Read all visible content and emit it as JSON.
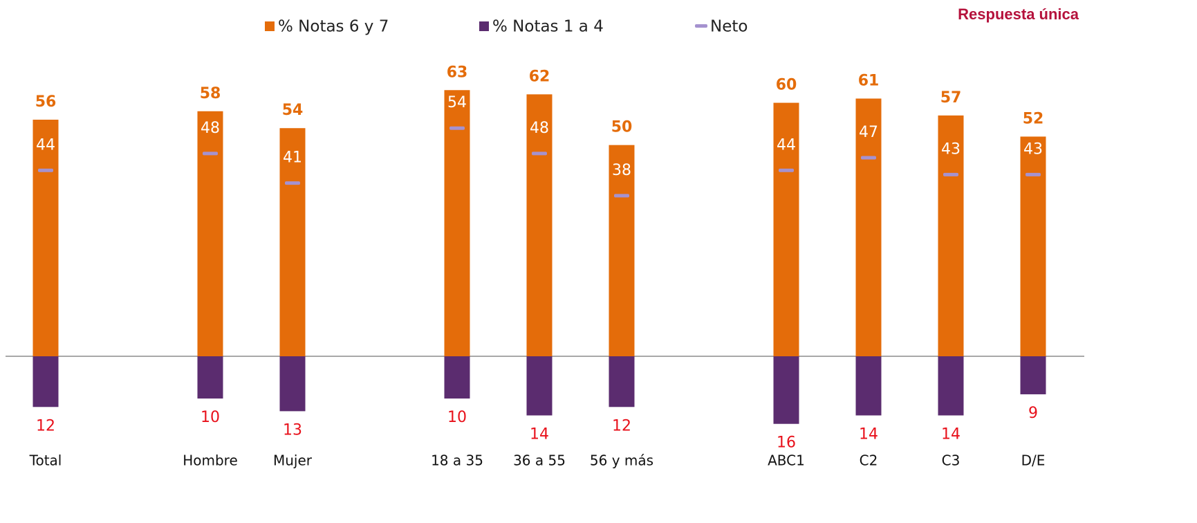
{
  "chart_data": {
    "type": "bar",
    "subtitle": "Respuesta única",
    "categories": [
      "Total",
      null,
      "Hombre",
      "Mujer",
      null,
      "18 a 35",
      "36 a 55",
      "56 y más",
      null,
      "ABC1",
      "C2",
      "C3",
      "D/E"
    ],
    "series": [
      {
        "name": "% Notas 6 y 7",
        "color": "#e46c0a",
        "type": "bar",
        "values": [
          56,
          null,
          58,
          54,
          null,
          63,
          62,
          50,
          null,
          60,
          61,
          57,
          52
        ]
      },
      {
        "name": "% Notas 1 a 4",
        "color": "#5b2c6f",
        "type": "bar",
        "values": [
          -12,
          null,
          -10,
          -13,
          null,
          -10,
          -14,
          -12,
          null,
          -16,
          -14,
          -14,
          -9
        ],
        "value_labels": [
          "12",
          null,
          "10",
          "13",
          null,
          "10",
          "14",
          "12",
          null,
          "16",
          "14",
          "14",
          "9"
        ]
      },
      {
        "name": "Neto",
        "color": "#a592cf",
        "type": "marker",
        "values": [
          44,
          null,
          48,
          41,
          null,
          54,
          48,
          38,
          null,
          44,
          47,
          43,
          43
        ]
      }
    ],
    "ylim": [
      -20,
      70
    ],
    "legend": "top"
  }
}
